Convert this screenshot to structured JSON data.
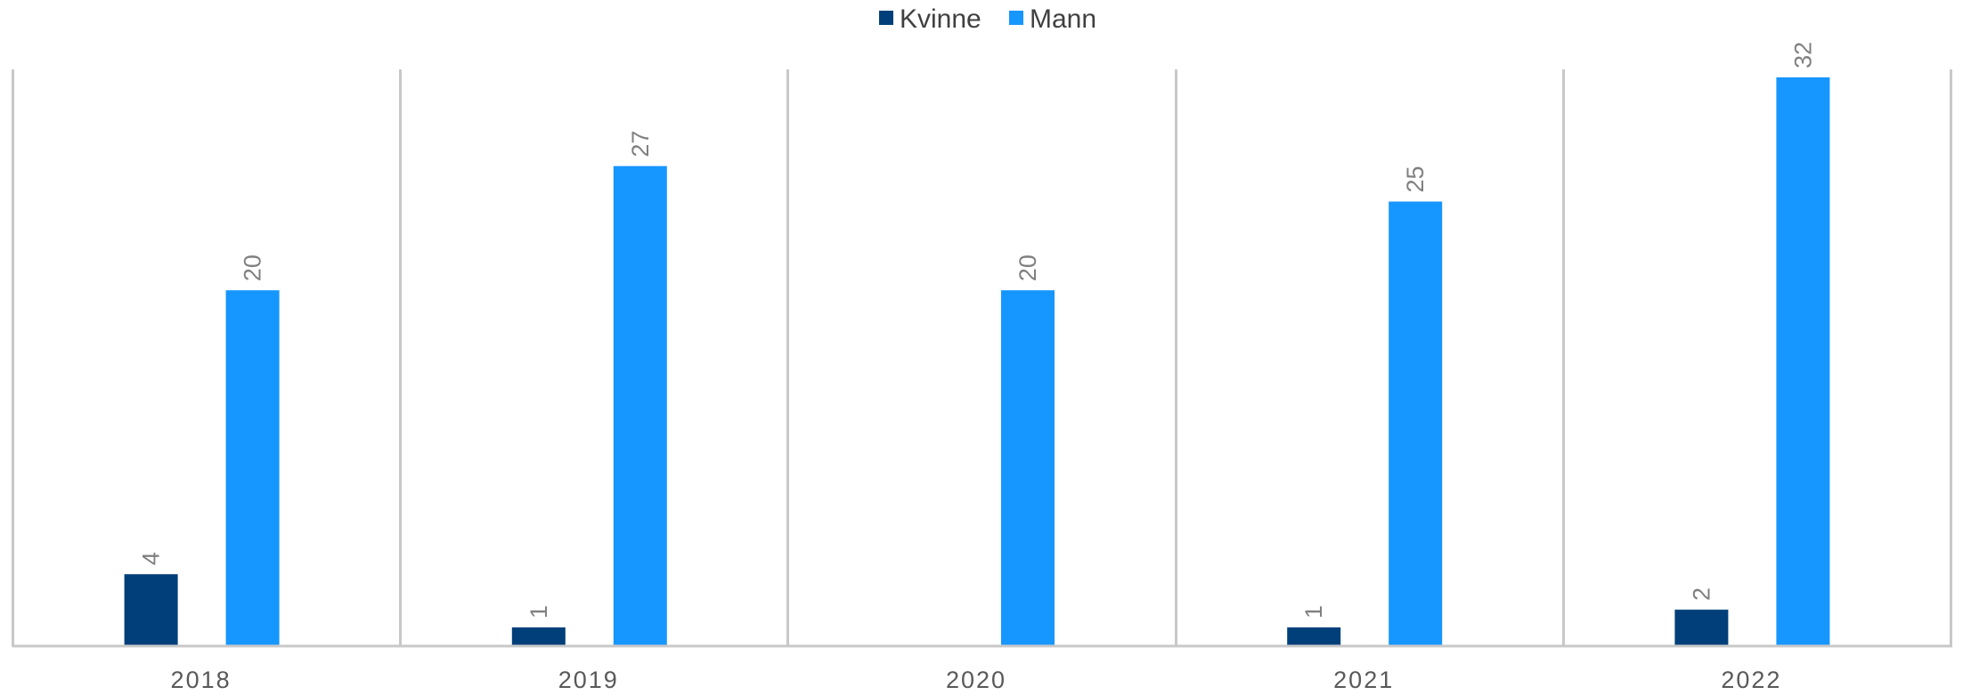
{
  "chart_data": {
    "type": "bar",
    "categories": [
      "2018",
      "2019",
      "2020",
      "2021",
      "2022"
    ],
    "series": [
      {
        "name": "Kvinne",
        "values": [
          4,
          1,
          0,
          1,
          2
        ],
        "color": "#003f7a"
      },
      {
        "name": "Mann",
        "values": [
          20,
          27,
          20,
          25,
          32
        ],
        "color": "#1696ff"
      }
    ],
    "title": "",
    "xlabel": "",
    "ylabel": "",
    "ylim": [
      0,
      33.5
    ],
    "legend_position": "top-center",
    "grid": "vertical category separators",
    "data_labels": "rotated 90 degrees, above bars, zero values hidden"
  },
  "colors": {
    "axis": "#c8c8c8",
    "tick_text": "#595959",
    "data_label_text": "#808080",
    "legend_text": "#404040"
  }
}
